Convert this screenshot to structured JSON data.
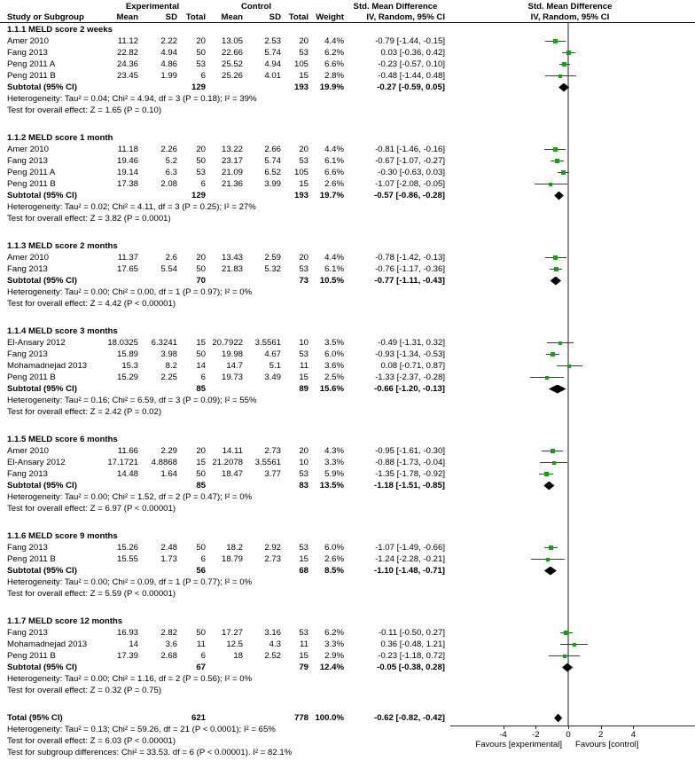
{
  "header": {
    "group_experimental": "Experimental",
    "group_control": "Control",
    "smd_col_title": "Std. Mean Difference",
    "plot_title": "Std. Mean Difference",
    "col_study": "Study or Subgroup",
    "col_mean": "Mean",
    "col_sd": "SD",
    "col_total": "Total",
    "col_weight": "Weight",
    "col_ci": "IV, Random, 95% CI",
    "plot_subtitle": "IV, Random, 95% CI"
  },
  "colors": {
    "marker_green": "#00ac00",
    "ci_line": "#3d3d3d",
    "diamond": "#000000",
    "zero_line": "#8f8f8f"
  },
  "chart_data": {
    "type": "forest",
    "axis": {
      "ticks": [
        -4,
        -2,
        0,
        2,
        4
      ],
      "xlim": [
        -7.2,
        7.8
      ]
    },
    "favours_left": "Favours [experimental]",
    "favours_right": "Favours [control]",
    "sections": [
      {
        "title": "1.1.1 MELD score 2 weeks",
        "studies": [
          {
            "name": "Amer 2010",
            "exp_mean": "11.12",
            "exp_sd": "2.22",
            "exp_total": "20",
            "ctrl_mean": "13.05",
            "ctrl_sd": "2.53",
            "ctrl_total": "20",
            "weight": "4.4%",
            "ci_text": "-0.79 [-1.44, -0.15]",
            "est": -0.79,
            "lo": -1.44,
            "hi": -0.15,
            "w": 4.4
          },
          {
            "name": "Fang 2013",
            "exp_mean": "22.82",
            "exp_sd": "4.94",
            "exp_total": "50",
            "ctrl_mean": "22.66",
            "ctrl_sd": "5.74",
            "ctrl_total": "53",
            "weight": "6.2%",
            "ci_text": "0.03 [-0.36, 0.42]",
            "est": 0.03,
            "lo": -0.36,
            "hi": 0.42,
            "w": 6.2
          },
          {
            "name": "Peng 2011 A",
            "exp_mean": "24.36",
            "exp_sd": "4.86",
            "exp_total": "53",
            "ctrl_mean": "25.52",
            "ctrl_sd": "4.94",
            "ctrl_total": "105",
            "weight": "6.6%",
            "ci_text": "-0.23 [-0.57, 0.10]",
            "est": -0.23,
            "lo": -0.57,
            "hi": 0.1,
            "w": 6.6
          },
          {
            "name": "Peng 2011 B",
            "exp_mean": "23.45",
            "exp_sd": "1.99",
            "exp_total": "6",
            "ctrl_mean": "25.26",
            "ctrl_sd": "4.01",
            "ctrl_total": "15",
            "weight": "2.8%",
            "ci_text": "-0.48 [-1.44, 0.48]",
            "est": -0.48,
            "lo": -1.44,
            "hi": 0.48,
            "w": 2.8
          }
        ],
        "subtotal": {
          "label": "Subtotal (95% CI)",
          "exp_total": "129",
          "ctrl_total": "193",
          "weight": "19.9%",
          "ci_text": "-0.27 [-0.59, 0.05]",
          "est": -0.27,
          "lo": -0.59,
          "hi": 0.05
        },
        "heterogeneity": "Heterogeneity: Tau² = 0.04; Chi² = 4.94, df = 3 (P = 0.18); I² = 39%",
        "overall": "Test for overall effect: Z = 1.65 (P = 0.10)"
      },
      {
        "title": "1.1.2 MELD score 1 month",
        "studies": [
          {
            "name": "Amer 2010",
            "exp_mean": "11.18",
            "exp_sd": "2.26",
            "exp_total": "20",
            "ctrl_mean": "13.22",
            "ctrl_sd": "2.66",
            "ctrl_total": "20",
            "weight": "4.4%",
            "ci_text": "-0.81 [-1.46, -0.16]",
            "est": -0.81,
            "lo": -1.46,
            "hi": -0.16,
            "w": 4.4
          },
          {
            "name": "Fang 2013",
            "exp_mean": "19.46",
            "exp_sd": "5.2",
            "exp_total": "50",
            "ctrl_mean": "23.17",
            "ctrl_sd": "5.74",
            "ctrl_total": "53",
            "weight": "6.1%",
            "ci_text": "-0.67 [-1.07, -0.27]",
            "est": -0.67,
            "lo": -1.07,
            "hi": -0.27,
            "w": 6.1
          },
          {
            "name": "Peng 2011 A",
            "exp_mean": "19.14",
            "exp_sd": "6.3",
            "exp_total": "53",
            "ctrl_mean": "21.09",
            "ctrl_sd": "6.52",
            "ctrl_total": "105",
            "weight": "6.6%",
            "ci_text": "-0.30 [-0.63, 0.03]",
            "est": -0.3,
            "lo": -0.63,
            "hi": 0.03,
            "w": 6.6
          },
          {
            "name": "Peng 2011 B",
            "exp_mean": "17.38",
            "exp_sd": "2.08",
            "exp_total": "6",
            "ctrl_mean": "21.36",
            "ctrl_sd": "3.99",
            "ctrl_total": "15",
            "weight": "2.6%",
            "ci_text": "-1.07 [-2.08, -0.05]",
            "est": -1.07,
            "lo": -2.08,
            "hi": -0.05,
            "w": 2.6
          }
        ],
        "subtotal": {
          "label": "Subtotal (95% CI)",
          "exp_total": "129",
          "ctrl_total": "193",
          "weight": "19.7%",
          "ci_text": "-0.57 [-0.86, -0.28]",
          "est": -0.57,
          "lo": -0.86,
          "hi": -0.28
        },
        "heterogeneity": "Heterogeneity: Tau² = 0.02; Chi² = 4.11, df = 3 (P = 0.25); I² = 27%",
        "overall": "Test for overall effect: Z = 3.82 (P = 0.0001)"
      },
      {
        "title": "1.1.3 MELD score 2 months",
        "studies": [
          {
            "name": "Amer 2010",
            "exp_mean": "11.37",
            "exp_sd": "2.6",
            "exp_total": "20",
            "ctrl_mean": "13.43",
            "ctrl_sd": "2.59",
            "ctrl_total": "20",
            "weight": "4.4%",
            "ci_text": "-0.78 [-1.42, -0.13]",
            "est": -0.78,
            "lo": -1.42,
            "hi": -0.13,
            "w": 4.4
          },
          {
            "name": "Fang 2013",
            "exp_mean": "17.65",
            "exp_sd": "5.54",
            "exp_total": "50",
            "ctrl_mean": "21.83",
            "ctrl_sd": "5.32",
            "ctrl_total": "53",
            "weight": "6.1%",
            "ci_text": "-0.76 [-1.17, -0.36]",
            "est": -0.76,
            "lo": -1.17,
            "hi": -0.36,
            "w": 6.1
          }
        ],
        "subtotal": {
          "label": "Subtotal (95% CI)",
          "exp_total": "70",
          "ctrl_total": "73",
          "weight": "10.5%",
          "ci_text": "-0.77 [-1.11, -0.43]",
          "est": -0.77,
          "lo": -1.11,
          "hi": -0.43
        },
        "heterogeneity": "Heterogeneity: Tau² = 0.00; Chi² = 0.00, df = 1 (P = 0.97); I² = 0%",
        "overall": "Test for overall effect: Z = 4.42 (P < 0.00001)"
      },
      {
        "title": "1.1.4 MELD score 3 months",
        "studies": [
          {
            "name": "El-Ansary 2012",
            "exp_mean": "18.0325",
            "exp_sd": "6.3241",
            "exp_total": "15",
            "ctrl_mean": "20.7922",
            "ctrl_sd": "3.5561",
            "ctrl_total": "10",
            "weight": "3.5%",
            "ci_text": "-0.49 [-1.31, 0.32]",
            "est": -0.49,
            "lo": -1.31,
            "hi": 0.32,
            "w": 3.5
          },
          {
            "name": "Fang 2013",
            "exp_mean": "15.89",
            "exp_sd": "3.98",
            "exp_total": "50",
            "ctrl_mean": "19.98",
            "ctrl_sd": "4.67",
            "ctrl_total": "53",
            "weight": "6.0%",
            "ci_text": "-0.93 [-1.34, -0.53]",
            "est": -0.93,
            "lo": -1.34,
            "hi": -0.53,
            "w": 6.0
          },
          {
            "name": "Mohamadnejad 2013",
            "exp_mean": "15.3",
            "exp_sd": "8.2",
            "exp_total": "14",
            "ctrl_mean": "14.7",
            "ctrl_sd": "5.1",
            "ctrl_total": "11",
            "weight": "3.6%",
            "ci_text": "0.08 [-0.71, 0.87]",
            "est": 0.08,
            "lo": -0.71,
            "hi": 0.87,
            "w": 3.6
          },
          {
            "name": "Peng 2011 B",
            "exp_mean": "15.29",
            "exp_sd": "2.25",
            "exp_total": "6",
            "ctrl_mean": "19.73",
            "ctrl_sd": "3.49",
            "ctrl_total": "15",
            "weight": "2.5%",
            "ci_text": "-1.33 [-2.37, -0.28]",
            "est": -1.33,
            "lo": -2.37,
            "hi": -0.28,
            "w": 2.5
          }
        ],
        "subtotal": {
          "label": "Subtotal (95% CI)",
          "exp_total": "85",
          "ctrl_total": "89",
          "weight": "15.6%",
          "ci_text": "-0.66 [-1.20, -0.13]",
          "est": -0.66,
          "lo": -1.2,
          "hi": -0.13
        },
        "heterogeneity": "Heterogeneity: Tau² = 0.16; Chi² = 6.59, df = 3 (P = 0.09); I² = 55%",
        "overall": "Test for overall effect: Z = 2.42 (P = 0.02)"
      },
      {
        "title": "1.1.5 MELD score 6 months",
        "studies": [
          {
            "name": "Amer 2010",
            "exp_mean": "11.66",
            "exp_sd": "2.29",
            "exp_total": "20",
            "ctrl_mean": "14.11",
            "ctrl_sd": "2.73",
            "ctrl_total": "20",
            "weight": "4.3%",
            "ci_text": "-0.95 [-1.61, -0.30]",
            "est": -0.95,
            "lo": -1.61,
            "hi": -0.3,
            "w": 4.3
          },
          {
            "name": "El-Ansary 2012",
            "exp_mean": "17.1721",
            "exp_sd": "4.8868",
            "exp_total": "15",
            "ctrl_mean": "21.2078",
            "ctrl_sd": "3.5561",
            "ctrl_total": "10",
            "weight": "3.3%",
            "ci_text": "-0.88 [-1.73, -0.04]",
            "est": -0.88,
            "lo": -1.73,
            "hi": -0.04,
            "w": 3.3
          },
          {
            "name": "Fang 2013",
            "exp_mean": "14.48",
            "exp_sd": "1.64",
            "exp_total": "50",
            "ctrl_mean": "18.47",
            "ctrl_sd": "3.77",
            "ctrl_total": "53",
            "weight": "5.9%",
            "ci_text": "-1.35 [-1.78, -0.92]",
            "est": -1.35,
            "lo": -1.78,
            "hi": -0.92,
            "w": 5.9
          }
        ],
        "subtotal": {
          "label": "Subtotal (95% CI)",
          "exp_total": "85",
          "ctrl_total": "83",
          "weight": "13.5%",
          "ci_text": "-1.18 [-1.51, -0.85]",
          "est": -1.18,
          "lo": -1.51,
          "hi": -0.85
        },
        "heterogeneity": "Heterogeneity: Tau² = 0.00; Chi² = 1.52, df = 2 (P = 0.47); I² = 0%",
        "overall": "Test for overall effect: Z = 6.97 (P < 0.00001)"
      },
      {
        "title": "1.1.6 MELD score 9 months",
        "studies": [
          {
            "name": "Fang 2013",
            "exp_mean": "15.26",
            "exp_sd": "2.48",
            "exp_total": "50",
            "ctrl_mean": "18.2",
            "ctrl_sd": "2.92",
            "ctrl_total": "53",
            "weight": "6.0%",
            "ci_text": "-1.07 [-1.49, -0.66]",
            "est": -1.07,
            "lo": -1.49,
            "hi": -0.66,
            "w": 6.0
          },
          {
            "name": "Peng 2011 B",
            "exp_mean": "15.55",
            "exp_sd": "1.73",
            "exp_total": "6",
            "ctrl_mean": "18.79",
            "ctrl_sd": "2.73",
            "ctrl_total": "15",
            "weight": "2.6%",
            "ci_text": "-1.24 [-2.28, -0.21]",
            "est": -1.24,
            "lo": -2.28,
            "hi": -0.21,
            "w": 2.6
          }
        ],
        "subtotal": {
          "label": "Subtotal (95% CI)",
          "exp_total": "56",
          "ctrl_total": "68",
          "weight": "8.5%",
          "ci_text": "-1.10 [-1.48, -0.71]",
          "est": -1.1,
          "lo": -1.48,
          "hi": -0.71
        },
        "heterogeneity": "Heterogeneity: Tau² = 0.00; Chi² = 0.09, df = 1 (P = 0.77); I² = 0%",
        "overall": "Test for overall effect: Z = 5.59 (P < 0.00001)"
      },
      {
        "title": "1.1.7 MELD score 12 months",
        "studies": [
          {
            "name": "Fang 2013",
            "exp_mean": "16.93",
            "exp_sd": "2.82",
            "exp_total": "50",
            "ctrl_mean": "17.27",
            "ctrl_sd": "3.16",
            "ctrl_total": "53",
            "weight": "6.2%",
            "ci_text": "-0.11 [-0.50, 0.27]",
            "est": -0.11,
            "lo": -0.5,
            "hi": 0.27,
            "w": 6.2
          },
          {
            "name": "Mohamadnejad 2013",
            "exp_mean": "14",
            "exp_sd": "3.6",
            "exp_total": "11",
            "ctrl_mean": "12.5",
            "ctrl_sd": "4.3",
            "ctrl_total": "11",
            "weight": "3.3%",
            "ci_text": "0.36 [-0.48, 1.21]",
            "est": 0.36,
            "lo": -0.48,
            "hi": 1.21,
            "w": 3.3
          },
          {
            "name": "Peng 2011 B",
            "exp_mean": "17.39",
            "exp_sd": "2.68",
            "exp_total": "6",
            "ctrl_mean": "18",
            "ctrl_sd": "2.52",
            "ctrl_total": "15",
            "weight": "2.9%",
            "ci_text": "-0.23 [-1.18, 0.72]",
            "est": -0.23,
            "lo": -1.18,
            "hi": 0.72,
            "w": 2.9
          }
        ],
        "subtotal": {
          "label": "Subtotal (95% CI)",
          "exp_total": "67",
          "ctrl_total": "79",
          "weight": "12.4%",
          "ci_text": "-0.05 [-0.38, 0.28]",
          "est": -0.05,
          "lo": -0.38,
          "hi": 0.28
        },
        "heterogeneity": "Heterogeneity: Tau² = 0.00; Chi² = 1.16, df = 2 (P = 0.56); I² = 0%",
        "overall": "Test for overall effect: Z = 0.32 (P = 0.75)"
      }
    ],
    "total": {
      "label": "Total (95% CI)",
      "exp_total": "621",
      "ctrl_total": "778",
      "weight": "100.0%",
      "ci_text": "-0.62 [-0.82, -0.42]",
      "est": -0.62,
      "lo": -0.82,
      "hi": -0.42
    },
    "total_heterogeneity": "Heterogeneity: Tau² = 0.13; Chi² = 59.26, df = 21 (P < 0.0001); I² = 65%",
    "total_overall": "Test for overall effect: Z = 6.03 (P < 0.00001)",
    "subgroup_diff": "Test for subgroup differences: Chi² = 33.53. df = 6 (P < 0.00001). I² = 82.1%"
  }
}
